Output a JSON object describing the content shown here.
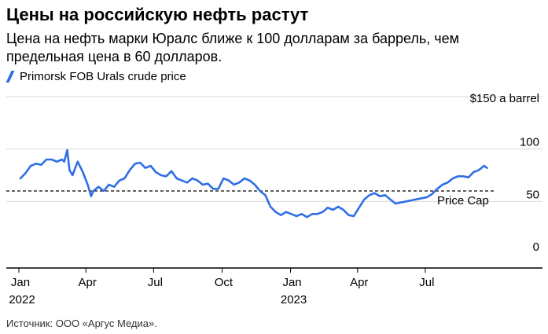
{
  "title": "Цены на российскую нефть растут",
  "subtitle": "Цена на нефть марки Юралс ближе к 100 долларам за баррель, чем предельная цена в 60 долларов.",
  "source": "Источник: ООО «Аргус Медиа».",
  "colors": {
    "line": "#2f6fe4",
    "grid": "#d9d9d9",
    "reference": "#000000",
    "axis": "#000000"
  },
  "chart_data": {
    "type": "line",
    "title": "Цены на российскую нефть растут",
    "ylabel": "$150 a barrel",
    "y_axis_unit_label": "$150 a barrel",
    "ylim": [
      0,
      150
    ],
    "y_ticks": [
      0,
      50,
      100
    ],
    "y_tick_labels": [
      "0",
      "50",
      "100"
    ],
    "grid": true,
    "legend_position": "top-left",
    "x_ticks": [
      {
        "date": "2022-01-01",
        "label": "Jan",
        "year": "2022"
      },
      {
        "date": "2022-04-01",
        "label": "Apr",
        "year": ""
      },
      {
        "date": "2022-07-01",
        "label": "Jul",
        "year": ""
      },
      {
        "date": "2022-10-01",
        "label": "Oct",
        "year": ""
      },
      {
        "date": "2023-01-01",
        "label": "Jan",
        "year": "2023"
      },
      {
        "date": "2023-04-01",
        "label": "Apr",
        "year": ""
      },
      {
        "date": "2023-07-01",
        "label": "Jul",
        "year": ""
      }
    ],
    "xlim": [
      "2022-01-01",
      "2023-10-01"
    ],
    "reference_line": {
      "value": 60,
      "label": "Price Cap"
    },
    "series": [
      {
        "name": "Primorsk FOB Urals crude price",
        "points": [
          [
            "2022-01-03",
            72
          ],
          [
            "2022-01-10",
            77
          ],
          [
            "2022-01-17",
            84
          ],
          [
            "2022-01-24",
            86
          ],
          [
            "2022-01-31",
            85
          ],
          [
            "2022-02-07",
            90
          ],
          [
            "2022-02-14",
            90
          ],
          [
            "2022-02-21",
            88
          ],
          [
            "2022-02-28",
            90
          ],
          [
            "2022-03-03",
            88
          ],
          [
            "2022-03-07",
            99
          ],
          [
            "2022-03-10",
            80
          ],
          [
            "2022-03-14",
            75
          ],
          [
            "2022-03-21",
            88
          ],
          [
            "2022-03-28",
            78
          ],
          [
            "2022-04-04",
            65
          ],
          [
            "2022-04-08",
            55
          ],
          [
            "2022-04-11",
            60
          ],
          [
            "2022-04-18",
            64
          ],
          [
            "2022-04-25",
            60
          ],
          [
            "2022-05-02",
            66
          ],
          [
            "2022-05-09",
            64
          ],
          [
            "2022-05-16",
            70
          ],
          [
            "2022-05-23",
            72
          ],
          [
            "2022-05-30",
            80
          ],
          [
            "2022-06-06",
            86
          ],
          [
            "2022-06-13",
            87
          ],
          [
            "2022-06-20",
            82
          ],
          [
            "2022-06-27",
            84
          ],
          [
            "2022-07-04",
            78
          ],
          [
            "2022-07-11",
            75
          ],
          [
            "2022-07-18",
            74
          ],
          [
            "2022-07-25",
            79
          ],
          [
            "2022-08-01",
            72
          ],
          [
            "2022-08-08",
            70
          ],
          [
            "2022-08-15",
            68
          ],
          [
            "2022-08-22",
            72
          ],
          [
            "2022-08-29",
            70
          ],
          [
            "2022-09-05",
            66
          ],
          [
            "2022-09-12",
            67
          ],
          [
            "2022-09-19",
            62
          ],
          [
            "2022-09-26",
            62
          ],
          [
            "2022-10-03",
            72
          ],
          [
            "2022-10-10",
            70
          ],
          [
            "2022-10-17",
            66
          ],
          [
            "2022-10-24",
            68
          ],
          [
            "2022-10-31",
            72
          ],
          [
            "2022-11-07",
            70
          ],
          [
            "2022-11-14",
            66
          ],
          [
            "2022-11-21",
            60
          ],
          [
            "2022-11-28",
            56
          ],
          [
            "2022-12-05",
            45
          ],
          [
            "2022-12-12",
            40
          ],
          [
            "2022-12-19",
            37
          ],
          [
            "2022-12-26",
            40
          ],
          [
            "2023-01-02",
            38
          ],
          [
            "2023-01-09",
            36
          ],
          [
            "2023-01-16",
            38
          ],
          [
            "2023-01-23",
            35
          ],
          [
            "2023-01-30",
            38
          ],
          [
            "2023-02-06",
            38
          ],
          [
            "2023-02-13",
            40
          ],
          [
            "2023-02-20",
            44
          ],
          [
            "2023-02-27",
            42
          ],
          [
            "2023-03-06",
            45
          ],
          [
            "2023-03-13",
            42
          ],
          [
            "2023-03-20",
            37
          ],
          [
            "2023-03-27",
            36
          ],
          [
            "2023-04-03",
            44
          ],
          [
            "2023-04-10",
            52
          ],
          [
            "2023-04-17",
            56
          ],
          [
            "2023-04-24",
            58
          ],
          [
            "2023-05-01",
            55
          ],
          [
            "2023-05-08",
            56
          ],
          [
            "2023-05-15",
            52
          ],
          [
            "2023-05-22",
            48
          ],
          [
            "2023-05-29",
            49
          ],
          [
            "2023-06-05",
            50
          ],
          [
            "2023-06-12",
            51
          ],
          [
            "2023-06-19",
            52
          ],
          [
            "2023-06-26",
            53
          ],
          [
            "2023-07-03",
            54
          ],
          [
            "2023-07-10",
            57
          ],
          [
            "2023-07-17",
            62
          ],
          [
            "2023-07-24",
            66
          ],
          [
            "2023-07-31",
            68
          ],
          [
            "2023-08-07",
            72
          ],
          [
            "2023-08-14",
            74
          ],
          [
            "2023-08-21",
            74
          ],
          [
            "2023-08-28",
            73
          ],
          [
            "2023-09-04",
            78
          ],
          [
            "2023-09-11",
            80
          ],
          [
            "2023-09-18",
            84
          ],
          [
            "2023-09-22",
            82
          ]
        ]
      }
    ]
  }
}
